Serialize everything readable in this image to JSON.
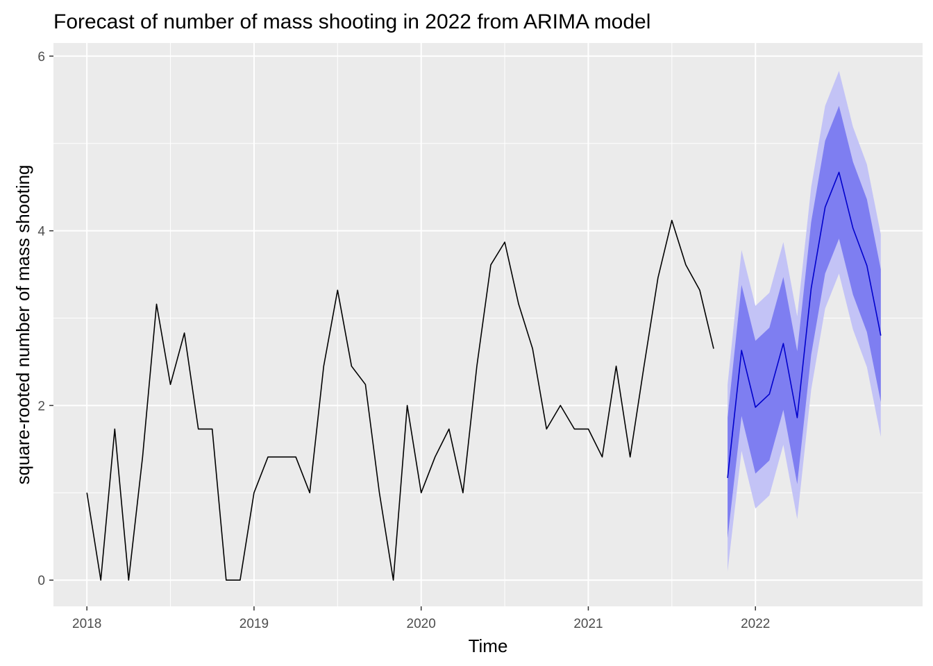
{
  "chart_data": {
    "type": "line",
    "title": "Forecast of number of mass shooting in 2022 from ARIMA model",
    "xlabel": "Time",
    "ylabel": "square-rooted number of mass shooting",
    "xlim": [
      2017.8,
      2023.0
    ],
    "ylim": [
      -0.3,
      6.15
    ],
    "x_ticks": [
      2018,
      2019,
      2020,
      2021,
      2022
    ],
    "x_tick_labels": [
      "2018",
      "2019",
      "2020",
      "2021",
      "2022"
    ],
    "y_ticks": [
      0,
      2,
      4,
      6
    ],
    "y_tick_labels": [
      "0",
      "2",
      "4",
      "6"
    ],
    "grid": true,
    "background": "#ebebeb",
    "series": [
      {
        "kind": "observed",
        "color": "#000000",
        "x": [
          2018.0,
          2018.0833,
          2018.1667,
          2018.25,
          2018.3333,
          2018.4167,
          2018.5,
          2018.5833,
          2018.6667,
          2018.75,
          2018.8333,
          2018.9167,
          2019.0,
          2019.0833,
          2019.1667,
          2019.25,
          2019.3333,
          2019.4167,
          2019.5,
          2019.5833,
          2019.6667,
          2019.75,
          2019.8333,
          2019.9167,
          2020.0,
          2020.0833,
          2020.1667,
          2020.25,
          2020.3333,
          2020.4167,
          2020.5,
          2020.5833,
          2020.6667,
          2020.75,
          2020.8333,
          2020.9167,
          2021.0,
          2021.0833,
          2021.1667,
          2021.25,
          2021.3333,
          2021.4167,
          2021.5,
          2021.5833,
          2021.6667,
          2021.75
        ],
        "values": [
          1.0,
          0.0,
          1.73,
          0.0,
          1.41,
          3.16,
          2.24,
          2.83,
          1.73,
          1.73,
          0.0,
          0.0,
          1.0,
          1.41,
          1.41,
          1.41,
          1.0,
          2.45,
          3.32,
          2.45,
          2.24,
          1.0,
          0.0,
          2.0,
          1.0,
          1.41,
          1.73,
          1.0,
          2.45,
          3.61,
          3.87,
          3.16,
          2.65,
          1.73,
          2.0,
          1.73,
          1.73,
          1.41,
          2.45,
          1.41,
          2.45,
          3.46,
          4.12,
          3.61,
          3.32,
          2.65
        ]
      },
      {
        "kind": "forecast",
        "color": "#0000cc",
        "x": [
          2021.8333,
          2021.9167,
          2022.0,
          2022.0833,
          2022.1667,
          2022.25,
          2022.3333,
          2022.4167,
          2022.5,
          2022.5833,
          2022.6667,
          2022.75
        ],
        "values": [
          1.17,
          2.63,
          1.98,
          2.13,
          2.71,
          1.86,
          3.34,
          4.27,
          4.67,
          4.03,
          3.6,
          2.8
        ],
        "lo80": [
          0.48,
          1.88,
          1.22,
          1.37,
          1.95,
          1.1,
          2.58,
          3.51,
          3.91,
          3.27,
          2.84,
          2.04
        ],
        "hi80": [
          1.86,
          3.38,
          2.74,
          2.89,
          3.47,
          2.62,
          4.1,
          5.03,
          5.43,
          4.79,
          4.36,
          3.56
        ],
        "lo95": [
          0.1,
          1.48,
          0.82,
          0.97,
          1.55,
          0.7,
          2.18,
          3.11,
          3.51,
          2.87,
          2.44,
          1.64
        ],
        "hi95": [
          2.24,
          3.78,
          3.14,
          3.29,
          3.87,
          3.02,
          4.5,
          5.43,
          5.83,
          5.19,
          4.76,
          3.96
        ],
        "band80_color": "#7e7ef1",
        "band95_color": "#c3c3f6"
      }
    ]
  }
}
